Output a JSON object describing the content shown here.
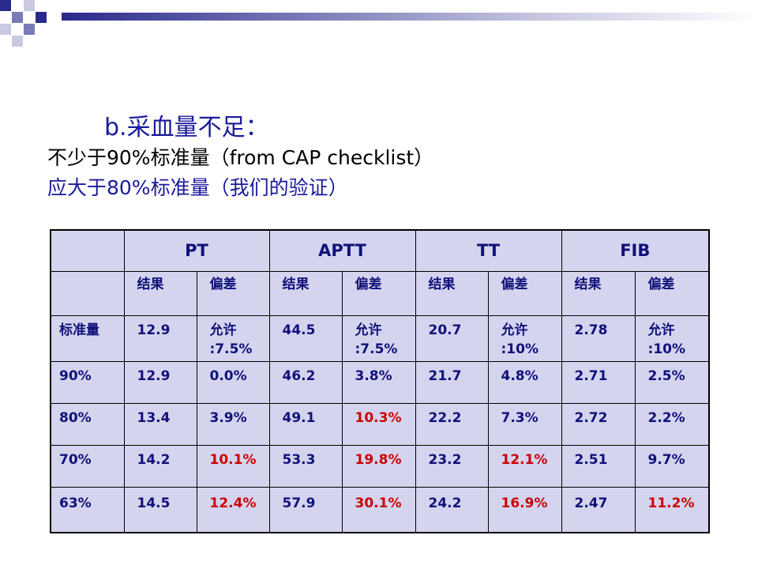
{
  "subtitle": "b.采血量不足：",
  "line1": "不少于90%标准量（from CAP checklist）",
  "line2": "应大于80%标准量（我们的验证）",
  "colors": {
    "title_blue": "#1a1a9c",
    "table_bg": "#d4d4ee",
    "table_text": "#10107a",
    "highlight_red": "#cc0000"
  },
  "table": {
    "groups": [
      "PT",
      "APTT",
      "TT",
      "FIB"
    ],
    "subheaders": [
      "结果",
      "偏差",
      "结果",
      "偏差",
      "结果",
      "偏差",
      "结果",
      "偏差"
    ],
    "standard_row": {
      "label": "标准量",
      "cells": [
        "12.9",
        "允许\n:7.5%",
        "44.5",
        "允许\n:7.5%",
        "20.7",
        "允许\n:10%",
        "2.78",
        "允许\n:10%"
      ]
    },
    "rows": [
      {
        "label": "90%",
        "cells": [
          "12.9",
          "0.0%",
          "46.2",
          "3.8%",
          "21.7",
          "4.8%",
          "2.71",
          "2.5%"
        ],
        "red": []
      },
      {
        "label": "80%",
        "cells": [
          "13.4",
          "3.9%",
          "49.1",
          "10.3%",
          "22.2",
          "7.3%",
          "2.72",
          "2.2%"
        ],
        "red": [
          3
        ]
      },
      {
        "label": "70%",
        "cells": [
          "14.2",
          "10.1%",
          "53.3",
          "19.8%",
          "23.2",
          "12.1%",
          "2.51",
          "9.7%"
        ],
        "red": [
          1,
          3,
          5
        ]
      },
      {
        "label": "63%",
        "cells": [
          "14.5",
          "12.4%",
          "57.9",
          "30.1%",
          "24.2",
          "16.9%",
          "2.47",
          "11.2%"
        ],
        "red": [
          1,
          3,
          5,
          7
        ]
      }
    ]
  }
}
